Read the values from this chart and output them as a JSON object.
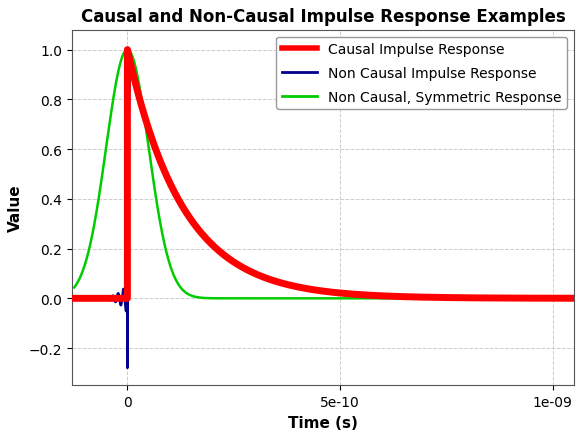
{
  "title": "Causal and Non-Causal Impulse Response Examples",
  "xlabel": "Time (s)",
  "ylabel": "Value",
  "xlim": [
    -1.3e-10,
    1.05e-09
  ],
  "ylim": [
    -0.35,
    1.08
  ],
  "grid": true,
  "background_color": "#ffffff",
  "legend_labels": [
    "Causal Impulse Response",
    "Non Causal Impulse Response",
    "Non Causal, Symmetric Response"
  ],
  "causal_color": "#ff0000",
  "noncausal_color": "#00008b",
  "symmetric_color": "#00cc00",
  "causal_linewidth": 5,
  "noncausal_linewidth": 1.8,
  "symmetric_linewidth": 1.8,
  "tau_causal": 1.3e-10,
  "tau_symmetric": 5e-11,
  "noncausal_osc_freq": 80000000000.0,
  "noncausal_decay": 50000000000.0,
  "noncausal_osc_amp": 0.06,
  "spike_tau": 2e-12,
  "spike_amp": 1.28,
  "title_fontsize": 12,
  "label_fontsize": 11,
  "tick_fontsize": 10,
  "legend_fontsize": 10
}
